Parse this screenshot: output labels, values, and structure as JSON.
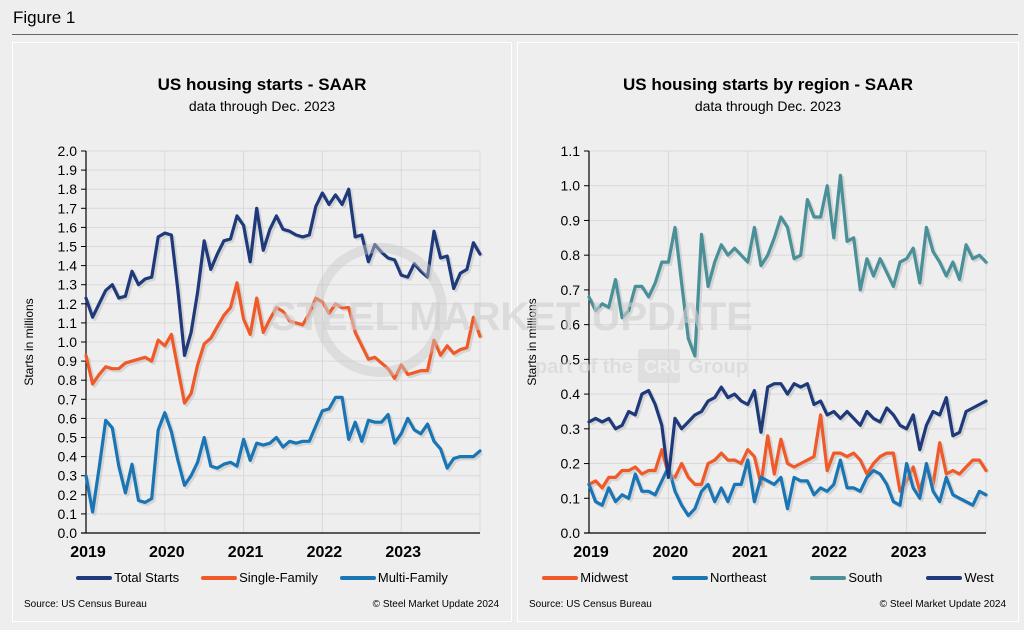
{
  "figure_title": "Figure 1",
  "watermark": {
    "main": "STEEL MARKET UPDATE",
    "sub_prefix": "part of the",
    "sub_logo": "CRU",
    "sub_suffix": "Group"
  },
  "chart_data": [
    {
      "type": "line",
      "title": "US housing starts - SAAR",
      "subtitle": "data through Dec. 2023",
      "xlabel": "",
      "ylabel": "Starts in millions",
      "ylim": [
        0.0,
        2.0
      ],
      "yticks": [
        "0.0",
        "0.1",
        "0.2",
        "0.3",
        "0.4",
        "0.5",
        "0.6",
        "0.7",
        "0.8",
        "0.9",
        "1.0",
        "1.1",
        "1.2",
        "1.3",
        "1.4",
        "1.5",
        "1.6",
        "1.7",
        "1.8",
        "1.9",
        "2.0"
      ],
      "xticks": [
        "2019",
        "2020",
        "2021",
        "2022",
        "2023"
      ],
      "x_range": [
        "Jan 2019",
        "Dec 2023"
      ],
      "grid": true,
      "legend_position": "bottom",
      "source": "Source: US Census Bureau",
      "copyright": "© Steel Market Update 2024",
      "series": [
        {
          "name": "Total Starts",
          "color": "#1f3a7a",
          "values": [
            1.23,
            1.13,
            1.2,
            1.27,
            1.3,
            1.23,
            1.24,
            1.37,
            1.3,
            1.33,
            1.34,
            1.55,
            1.57,
            1.56,
            1.27,
            0.93,
            1.05,
            1.26,
            1.53,
            1.38,
            1.46,
            1.53,
            1.54,
            1.66,
            1.61,
            1.42,
            1.7,
            1.48,
            1.59,
            1.66,
            1.59,
            1.58,
            1.56,
            1.55,
            1.56,
            1.71,
            1.78,
            1.72,
            1.77,
            1.72,
            1.8,
            1.55,
            1.56,
            1.42,
            1.51,
            1.47,
            1.44,
            1.43,
            1.35,
            1.34,
            1.41,
            1.37,
            1.34,
            1.58,
            1.44,
            1.45,
            1.28,
            1.36,
            1.38,
            1.52,
            1.46
          ]
        },
        {
          "name": "Single-Family",
          "color": "#f05a28",
          "values": [
            0.93,
            0.78,
            0.83,
            0.87,
            0.86,
            0.86,
            0.89,
            0.9,
            0.91,
            0.92,
            0.9,
            1.01,
            0.98,
            1.04,
            0.86,
            0.68,
            0.73,
            0.88,
            0.99,
            1.02,
            1.08,
            1.14,
            1.18,
            1.31,
            1.12,
            1.04,
            1.23,
            1.05,
            1.12,
            1.18,
            1.16,
            1.11,
            1.1,
            1.09,
            1.15,
            1.23,
            1.21,
            1.15,
            1.2,
            1.18,
            1.18,
            1.05,
            0.98,
            0.91,
            0.92,
            0.89,
            0.86,
            0.81,
            0.88,
            0.83,
            0.84,
            0.85,
            0.85,
            1.01,
            0.93,
            0.98,
            0.94,
            0.96,
            0.97,
            1.13,
            1.03
          ]
        },
        {
          "name": "Multi-Family",
          "color": "#1a75b5",
          "values": [
            0.3,
            0.11,
            0.34,
            0.59,
            0.55,
            0.35,
            0.21,
            0.36,
            0.17,
            0.16,
            0.18,
            0.54,
            0.63,
            0.53,
            0.38,
            0.25,
            0.3,
            0.37,
            0.5,
            0.35,
            0.34,
            0.36,
            0.37,
            0.35,
            0.49,
            0.38,
            0.47,
            0.46,
            0.47,
            0.5,
            0.45,
            0.48,
            0.47,
            0.48,
            0.48,
            0.56,
            0.64,
            0.65,
            0.71,
            0.71,
            0.49,
            0.58,
            0.48,
            0.59,
            0.58,
            0.58,
            0.62,
            0.47,
            0.52,
            0.6,
            0.54,
            0.52,
            0.57,
            0.48,
            0.44,
            0.34,
            0.39,
            0.4,
            0.4,
            0.4,
            0.43
          ]
        }
      ]
    },
    {
      "type": "line",
      "title": "US housing starts by region - SAAR",
      "subtitle": "data through Dec. 2023",
      "xlabel": "",
      "ylabel": "Starts in millions",
      "ylim": [
        0.0,
        1.1
      ],
      "yticks": [
        "0.0",
        "0.1",
        "0.2",
        "0.3",
        "0.4",
        "0.5",
        "0.6",
        "0.7",
        "0.8",
        "0.9",
        "1.0",
        "1.1"
      ],
      "xticks": [
        "2019",
        "2020",
        "2021",
        "2022",
        "2023"
      ],
      "x_range": [
        "Jan 2019",
        "Dec 2023"
      ],
      "grid": true,
      "legend_position": "bottom",
      "source": "Source: US Census Bureau",
      "copyright": "© Steel Market Update 2024",
      "series": [
        {
          "name": "Midwest",
          "color": "#f05a28",
          "values": [
            0.14,
            0.15,
            0.13,
            0.16,
            0.16,
            0.18,
            0.18,
            0.19,
            0.17,
            0.18,
            0.18,
            0.24,
            0.17,
            0.16,
            0.2,
            0.16,
            0.14,
            0.14,
            0.2,
            0.21,
            0.23,
            0.21,
            0.21,
            0.2,
            0.24,
            0.22,
            0.14,
            0.28,
            0.17,
            0.27,
            0.2,
            0.19,
            0.2,
            0.21,
            0.22,
            0.34,
            0.18,
            0.23,
            0.23,
            0.22,
            0.23,
            0.21,
            0.17,
            0.2,
            0.22,
            0.23,
            0.23,
            0.12,
            0.15,
            0.19,
            0.12,
            0.19,
            0.14,
            0.26,
            0.17,
            0.18,
            0.17,
            0.19,
            0.21,
            0.21,
            0.18
          ]
        },
        {
          "name": "Northeast",
          "color": "#1a75b5",
          "values": [
            0.14,
            0.09,
            0.08,
            0.13,
            0.09,
            0.11,
            0.1,
            0.17,
            0.12,
            0.12,
            0.11,
            0.15,
            0.19,
            0.12,
            0.08,
            0.05,
            0.07,
            0.12,
            0.14,
            0.09,
            0.13,
            0.09,
            0.14,
            0.14,
            0.21,
            0.09,
            0.16,
            0.15,
            0.14,
            0.16,
            0.07,
            0.16,
            0.15,
            0.15,
            0.11,
            0.13,
            0.12,
            0.14,
            0.21,
            0.13,
            0.13,
            0.12,
            0.16,
            0.18,
            0.17,
            0.14,
            0.09,
            0.08,
            0.2,
            0.13,
            0.1,
            0.2,
            0.12,
            0.09,
            0.16,
            0.11,
            0.1,
            0.09,
            0.08,
            0.12,
            0.11
          ]
        },
        {
          "name": "South",
          "color": "#4a9098",
          "values": [
            0.68,
            0.64,
            0.66,
            0.65,
            0.73,
            0.62,
            0.64,
            0.71,
            0.71,
            0.68,
            0.72,
            0.78,
            0.78,
            0.88,
            0.72,
            0.56,
            0.51,
            0.86,
            0.71,
            0.78,
            0.83,
            0.8,
            0.82,
            0.8,
            0.78,
            0.88,
            0.77,
            0.8,
            0.85,
            0.91,
            0.88,
            0.79,
            0.8,
            0.96,
            0.91,
            0.91,
            1.0,
            0.85,
            1.03,
            0.84,
            0.85,
            0.7,
            0.79,
            0.74,
            0.79,
            0.75,
            0.71,
            0.78,
            0.79,
            0.82,
            0.72,
            0.88,
            0.81,
            0.78,
            0.74,
            0.78,
            0.73,
            0.83,
            0.79,
            0.8,
            0.78
          ]
        },
        {
          "name": "West",
          "color": "#1f3a7a",
          "values": [
            0.32,
            0.33,
            0.32,
            0.33,
            0.3,
            0.31,
            0.35,
            0.34,
            0.4,
            0.41,
            0.37,
            0.31,
            0.16,
            0.33,
            0.3,
            0.32,
            0.34,
            0.35,
            0.38,
            0.39,
            0.42,
            0.39,
            0.4,
            0.38,
            0.37,
            0.41,
            0.29,
            0.42,
            0.43,
            0.43,
            0.4,
            0.43,
            0.42,
            0.43,
            0.37,
            0.38,
            0.34,
            0.35,
            0.33,
            0.35,
            0.33,
            0.31,
            0.35,
            0.33,
            0.32,
            0.36,
            0.34,
            0.31,
            0.3,
            0.34,
            0.24,
            0.31,
            0.35,
            0.34,
            0.39,
            0.28,
            0.29,
            0.35,
            0.36,
            0.37,
            0.38
          ]
        }
      ]
    }
  ]
}
